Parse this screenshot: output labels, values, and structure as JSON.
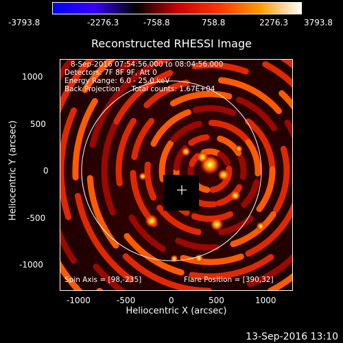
{
  "colorbar": {
    "colors": [
      "#0000ff",
      "#3a00ff",
      "#000000",
      "#cc0000",
      "#ff3300",
      "#ff9a00",
      "#ffffff"
    ],
    "tick_labels": [
      "-3793.8",
      "-2276.3",
      "-758.8",
      "758.8",
      "2276.3",
      "3793.8"
    ]
  },
  "plot": {
    "title": "Reconstructed RHESSI Image",
    "info_lines": [
      "8-Sep-2016 07:54:56.000 to 08:04:56.000",
      "Detectors: 7F 8F 9F, Att 0",
      "Energy Range: 6.0 - 25.0 keV",
      "Back Projection     Total counts: 1.67E+04"
    ],
    "spin_axis": "Spin Axis = [98,-235]",
    "flare_position": "Flare Position = [390,32]",
    "x_axis_title": "Heliocentric X (arcsec)",
    "y_axis_title": "Heliocentric Y (arcsec)",
    "x_ticks": [
      "-1000",
      "-500",
      "0",
      "500",
      "1000"
    ],
    "y_ticks": [
      "1000",
      "500",
      "0",
      "-500",
      "-1000"
    ],
    "image_colors": [
      "#2a0000",
      "#7a0000",
      "#c81400",
      "#ff4a00",
      "#ffb000",
      "#ffffff"
    ]
  },
  "footer": {
    "timestamp": "13-Sep-2016 13:10"
  }
}
